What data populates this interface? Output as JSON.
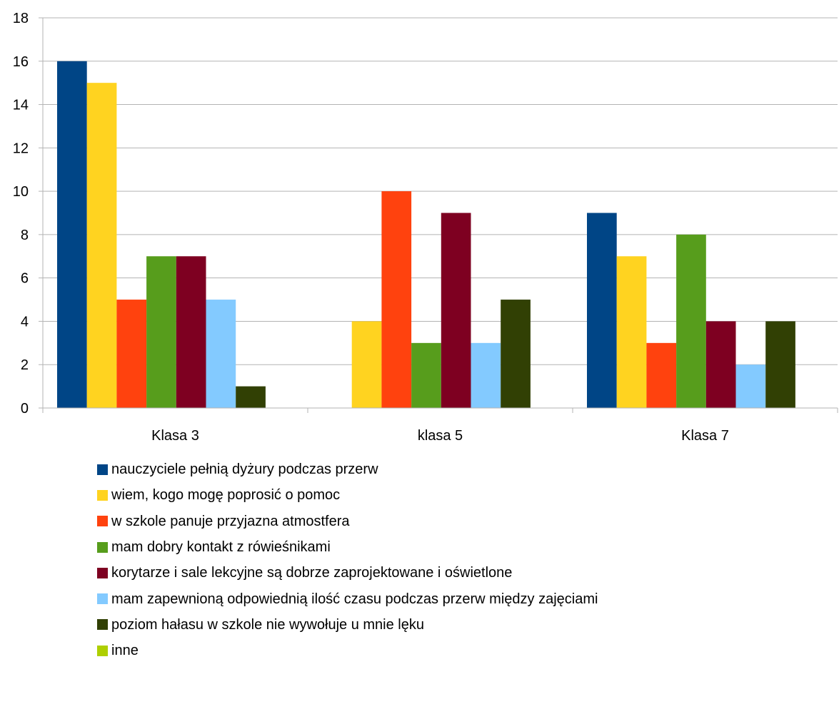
{
  "chart_data": {
    "type": "bar",
    "categories": [
      "Klasa 3",
      "klasa 5",
      "Klasa 7"
    ],
    "ylim": [
      0,
      18
    ],
    "yticks": [
      0,
      2,
      4,
      6,
      8,
      10,
      12,
      14,
      16,
      18
    ],
    "grid": true,
    "legend_position": "bottom",
    "series": [
      {
        "name": "nauczyciele pełnią dyżury podczas przerw",
        "color": "#004586",
        "values": [
          16,
          null,
          9
        ]
      },
      {
        "name": "wiem, kogo mogę poprosić o pomoc",
        "color": "#ffd320",
        "values": [
          15,
          4,
          7
        ]
      },
      {
        "name": "w szkole panuje przyjazna atmostfera",
        "color": "#ff420e",
        "values": [
          5,
          10,
          3
        ]
      },
      {
        "name": "mam dobry kontakt z rówieśnikami",
        "color": "#579d1c",
        "values": [
          7,
          3,
          8
        ]
      },
      {
        "name": "korytarze i sale lekcyjne są dobrze zaprojektowane i oświetlone",
        "color": "#7e0021",
        "values": [
          7,
          9,
          4
        ]
      },
      {
        "name": "mam zapewnioną odpowiednią ilość czasu podczas przerw między zajęciami",
        "color": "#83caff",
        "values": [
          5,
          3,
          2
        ]
      },
      {
        "name": "poziom hałasu w szkole nie wywołuje u mnie lęku",
        "color": "#314004",
        "values": [
          1,
          5,
          4
        ]
      },
      {
        "name": "inne",
        "color": "#aecf00",
        "values": [
          null,
          null,
          null
        ]
      }
    ]
  }
}
